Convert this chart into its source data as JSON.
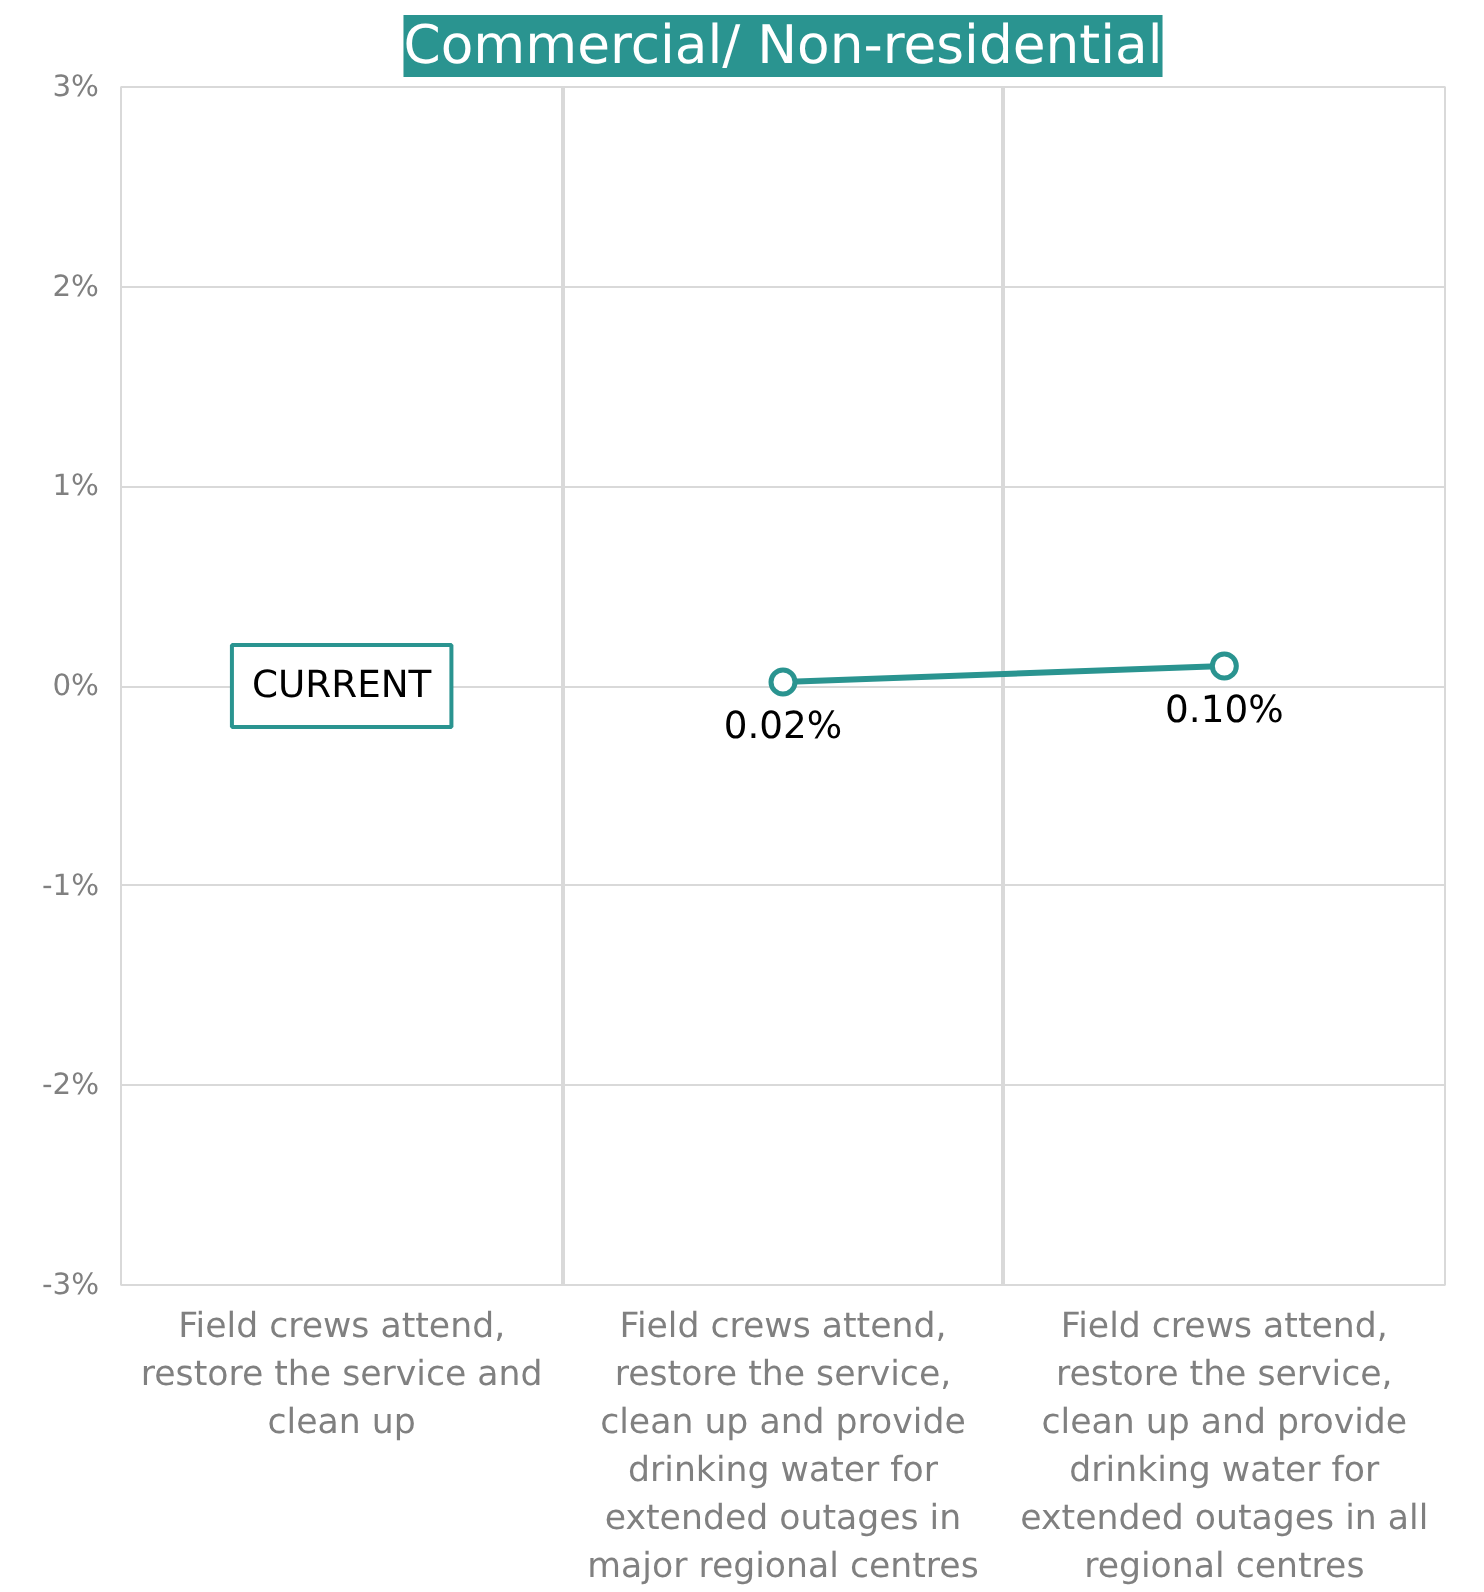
{
  "chart_data": {
    "type": "line",
    "title": "Commercial/ Non-residential",
    "categories": [
      "Field crews attend, restore the service and clean up",
      "Field crews attend, restore the service, clean up and provide drinking water for extended outages in major regional centres",
      "Field crews attend, restore the service, clean up and provide drinking water for extended outages in all regional centres"
    ],
    "series": [
      {
        "color": "#2a9490",
        "values": [
          null,
          0.02,
          0.1
        ],
        "value_labels": [
          null,
          "0.02%",
          "0.10%"
        ]
      }
    ],
    "ylim": [
      -3,
      3
    ],
    "yticks": [
      {
        "value": 3,
        "label": "3%"
      },
      {
        "value": 2,
        "label": "2%"
      },
      {
        "value": 1,
        "label": "1%"
      },
      {
        "value": 0,
        "label": "0%"
      },
      {
        "value": -1,
        "label": "-1%"
      },
      {
        "value": -2,
        "label": "-2%"
      },
      {
        "value": -3,
        "label": "-3%"
      }
    ],
    "annotations": [
      "CURRENT"
    ],
    "grid": true,
    "marker": "circle",
    "line_style": "solid"
  }
}
